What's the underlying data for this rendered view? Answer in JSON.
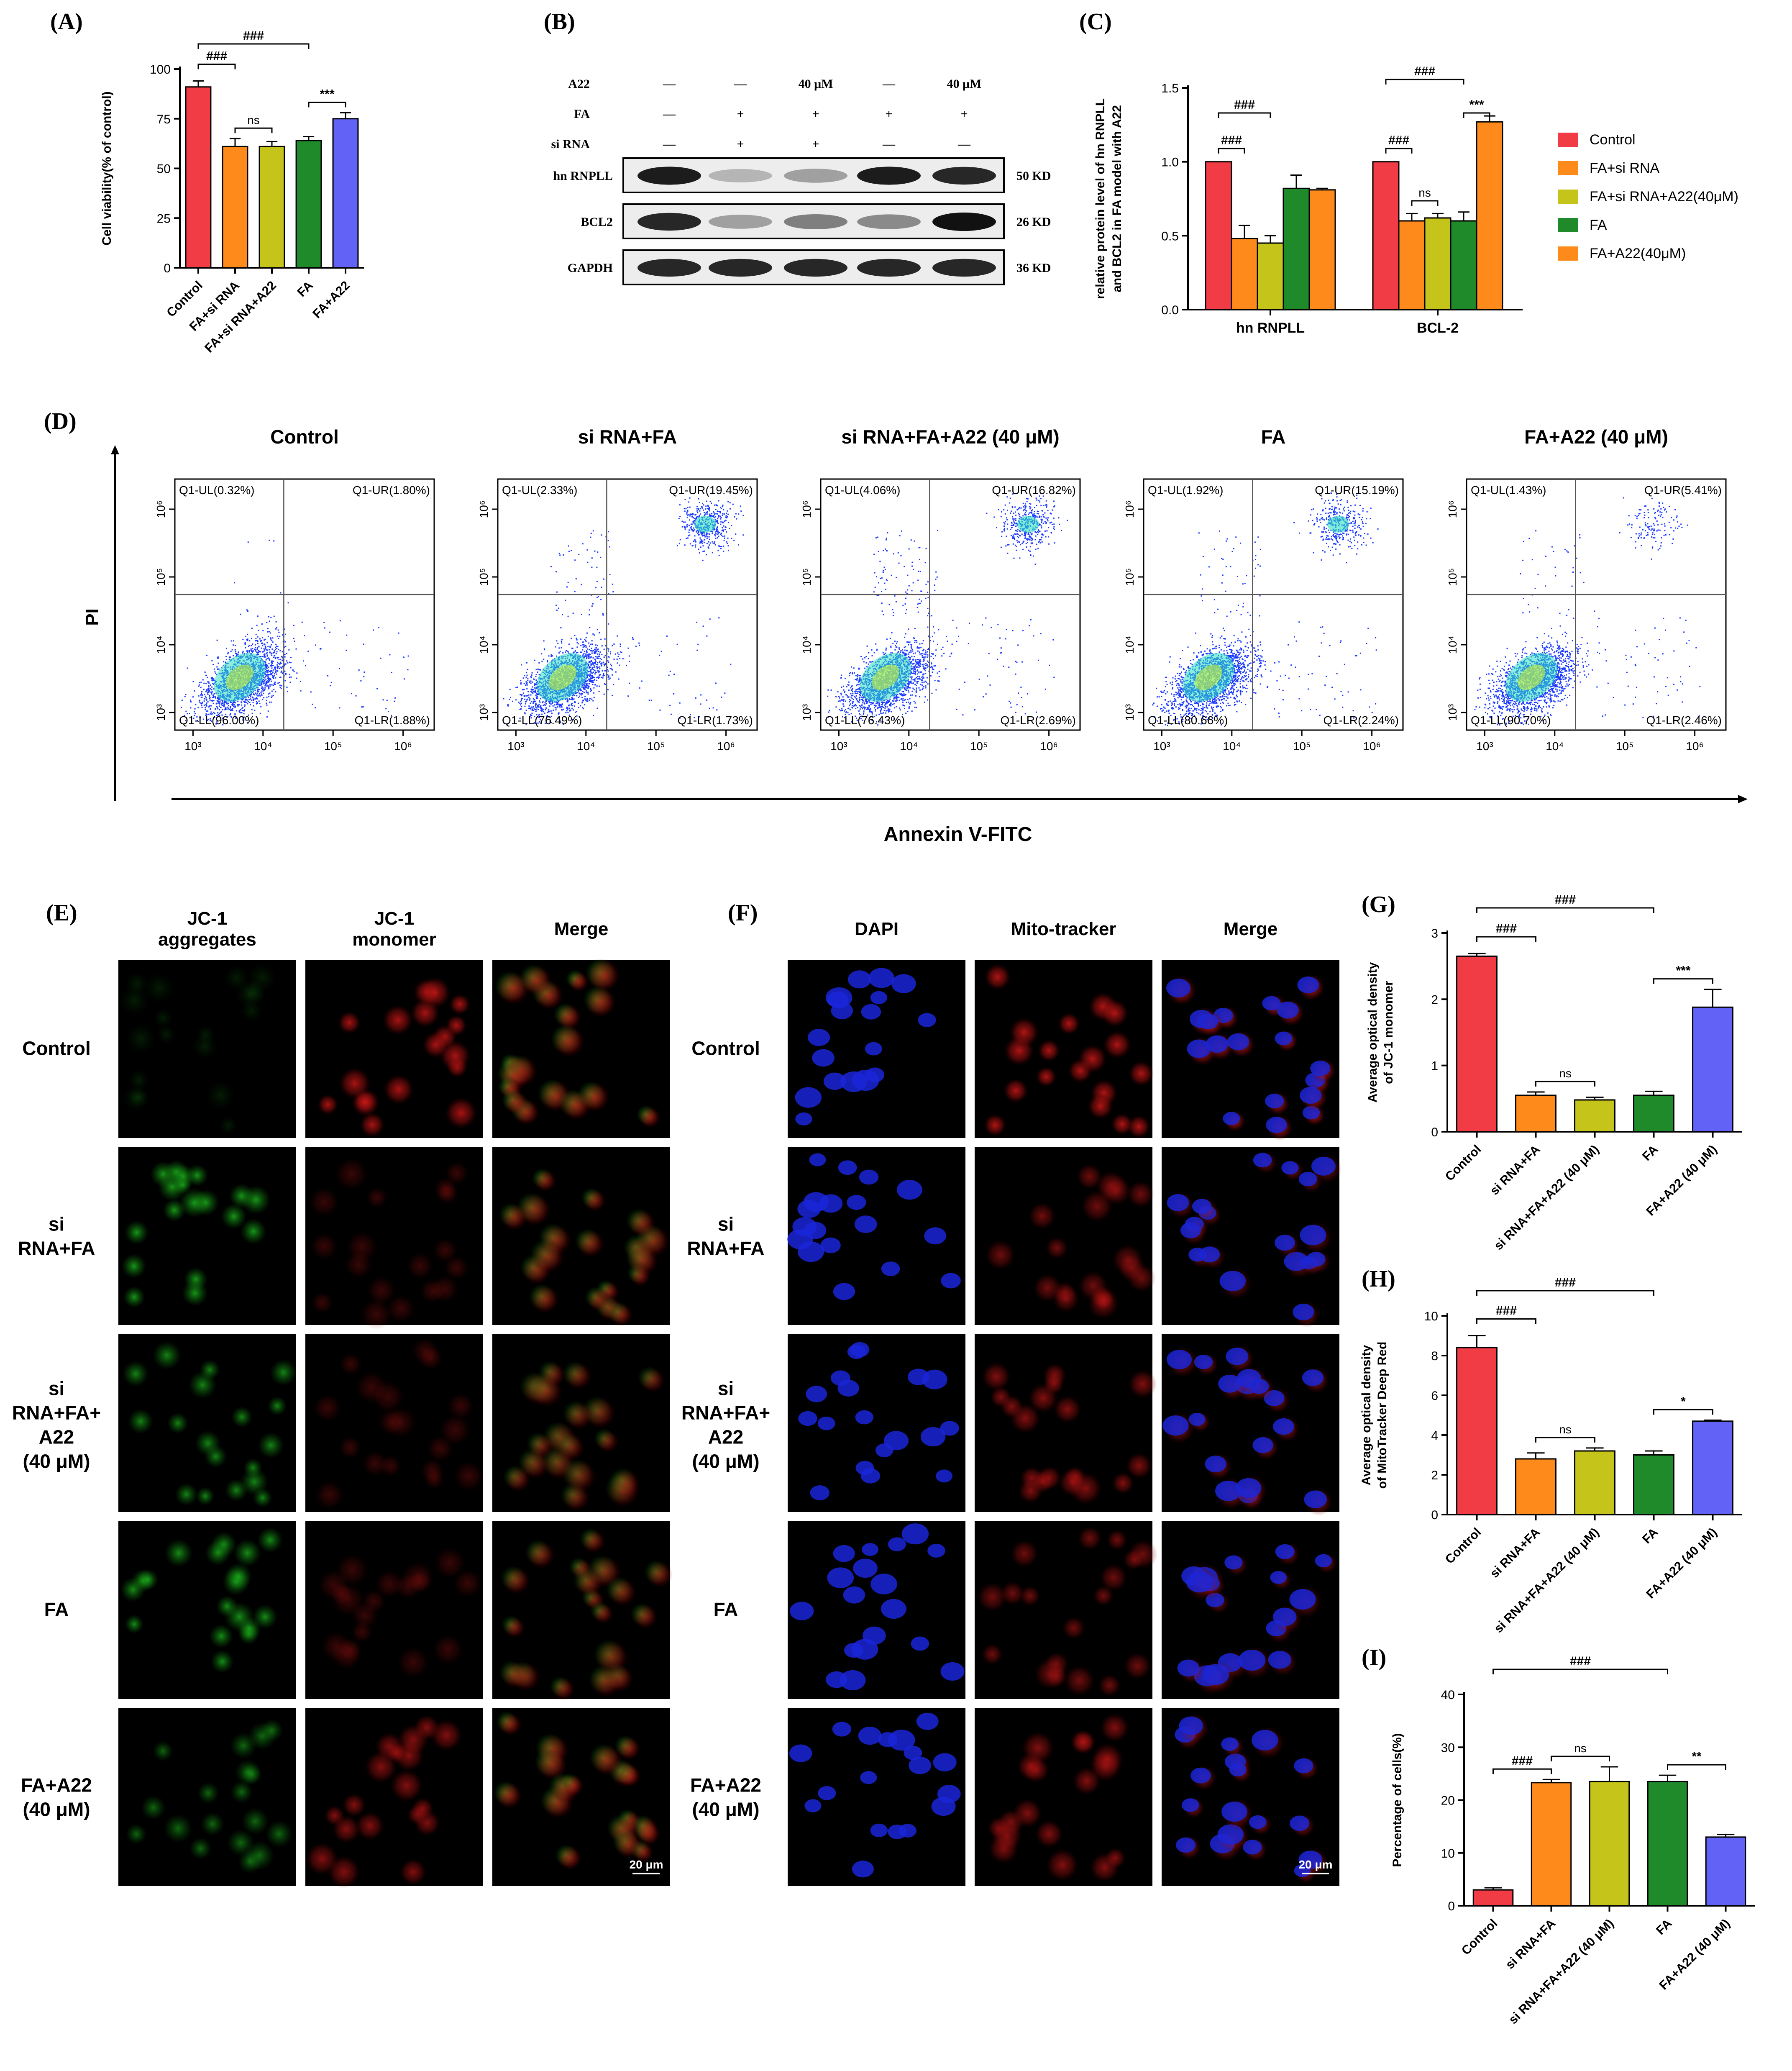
{
  "panels": {
    "A": "(A)",
    "B": "(B)",
    "C": "(C)",
    "D": "(D)",
    "E": "(E)",
    "F": "(F)",
    "G": "(G)",
    "H": "(H)",
    "I": "(I)"
  },
  "chart_data": [
    {
      "id": "A",
      "type": "bar",
      "categories": [
        "Control",
        "FA+si RNA",
        "FA+si RNA+A22",
        "FA",
        "FA+A22"
      ],
      "values": [
        91,
        61,
        61,
        64,
        75
      ],
      "errors": [
        3,
        4,
        2.5,
        2,
        3
      ],
      "colors": [
        "#f23c45",
        "#ff8a1c",
        "#c4c41a",
        "#1f8a2a",
        "#6262f7"
      ],
      "ylabel": "Cell viability(% of control)",
      "ylim": [
        0,
        100
      ],
      "yticks": [
        0,
        25,
        50,
        75,
        100
      ],
      "annotations": [
        {
          "from": 0,
          "to": 1,
          "text": "###"
        },
        {
          "from": 0,
          "to": 3,
          "text": "###"
        },
        {
          "from": 1,
          "to": 2,
          "text": "ns"
        },
        {
          "from": 3,
          "to": 4,
          "text": "***"
        }
      ]
    },
    {
      "id": "C",
      "type": "bar",
      "categories": [
        "hn RNPLL",
        "BCL-2"
      ],
      "series": [
        {
          "name": "Control",
          "values": [
            1.0,
            1.0
          ],
          "errors": [
            0,
            0
          ]
        },
        {
          "name": "FA+si RNA",
          "values": [
            0.48,
            0.6
          ],
          "errors": [
            0.09,
            0.05
          ]
        },
        {
          "name": "FA+si RNA+A22(40μM)",
          "values": [
            0.45,
            0.62
          ],
          "errors": [
            0.05,
            0.03
          ]
        },
        {
          "name": "FA",
          "values": [
            0.82,
            0.6
          ],
          "errors": [
            0.09,
            0.06
          ]
        },
        {
          "name": "FA+A22(40μM)",
          "values": [
            0.81,
            1.27
          ],
          "errors": [
            0.01,
            0.04
          ]
        }
      ],
      "colors": [
        "#f23c45",
        "#ff8a1c",
        "#c4c41a",
        "#1f8a2a",
        "#ff8a1c"
      ],
      "ylabel": [
        "relative protein level of hn RNPLL",
        "and BCL2 in FA model with A22"
      ],
      "ylim": [
        0,
        1.5
      ],
      "yticks": [
        "0.0",
        "0.5",
        "1.0",
        "1.5"
      ],
      "legend_position": "right",
      "annotations": [
        {
          "group": 0,
          "from": 0,
          "to": 1,
          "text": "###"
        },
        {
          "group": 0,
          "from": 0,
          "to": 2,
          "text": "###"
        },
        {
          "group": 1,
          "from": 0,
          "to": 1,
          "text": "###"
        },
        {
          "group": 1,
          "from": 1,
          "to": 2,
          "text": "ns"
        },
        {
          "group": 1,
          "from": 0,
          "to": 3,
          "text": "###"
        },
        {
          "group": 1,
          "from": 3,
          "to": 4,
          "text": "***"
        }
      ]
    },
    {
      "id": "G",
      "type": "bar",
      "categories": [
        "Control",
        "si RNA+FA",
        "si RNA+FA+A22 (40 μM)",
        "FA",
        "FA+A22 (40 μM)"
      ],
      "values": [
        2.65,
        0.55,
        0.48,
        0.55,
        1.88
      ],
      "errors": [
        0.04,
        0.05,
        0.04,
        0.06,
        0.27
      ],
      "colors": [
        "#f23c45",
        "#ff8a1c",
        "#c4c41a",
        "#1f8a2a",
        "#6262f7"
      ],
      "ylabel": [
        "Average optical density",
        "of JC-1 monomer"
      ],
      "ylim": [
        0,
        3
      ],
      "yticks": [
        0,
        1,
        2,
        3
      ],
      "annotations": [
        {
          "from": 0,
          "to": 1,
          "text": "###"
        },
        {
          "from": 0,
          "to": 3,
          "text": "###"
        },
        {
          "from": 1,
          "to": 2,
          "text": "ns"
        },
        {
          "from": 3,
          "to": 4,
          "text": "***"
        }
      ]
    },
    {
      "id": "H",
      "type": "bar",
      "categories": [
        "Control",
        "si RNA+FA",
        "si RNA+FA+A22 (40 μM)",
        "FA",
        "FA+A22 (40 μM)"
      ],
      "values": [
        8.4,
        2.8,
        3.2,
        3.0,
        4.7
      ],
      "errors": [
        0.6,
        0.3,
        0.15,
        0.2,
        0.05
      ],
      "colors": [
        "#f23c45",
        "#ff8a1c",
        "#c4c41a",
        "#1f8a2a",
        "#6262f7"
      ],
      "ylabel": [
        "Average optical density",
        "of MitoTracker Deep Red"
      ],
      "ylim": [
        0,
        10
      ],
      "yticks": [
        0,
        2,
        4,
        6,
        8,
        10
      ],
      "annotations": [
        {
          "from": 0,
          "to": 1,
          "text": "###"
        },
        {
          "from": 0,
          "to": 3,
          "text": "###"
        },
        {
          "from": 1,
          "to": 2,
          "text": "ns"
        },
        {
          "from": 3,
          "to": 4,
          "text": "*"
        }
      ]
    },
    {
      "id": "I",
      "type": "bar",
      "categories": [
        "Control",
        "si RNA+FA",
        "si RNA+FA+A22 (40 μM)",
        "FA",
        "FA+A22 (40 μM)"
      ],
      "values": [
        3.0,
        23.3,
        23.5,
        23.5,
        13.0
      ],
      "errors": [
        0.4,
        0.6,
        2.8,
        1.2,
        0.5
      ],
      "colors": [
        "#f23c45",
        "#ff8a1c",
        "#c4c41a",
        "#1f8a2a",
        "#6262f7"
      ],
      "ylabel": "Percentage of cells(%)",
      "ylim": [
        0,
        40
      ],
      "yticks": [
        0,
        10,
        20,
        30,
        40
      ],
      "annotations": [
        {
          "from": 0,
          "to": 1,
          "text": "###"
        },
        {
          "from": 0,
          "to": 3,
          "text": "###"
        },
        {
          "from": 1,
          "to": 2,
          "text": "ns"
        },
        {
          "from": 3,
          "to": 4,
          "text": "**"
        }
      ]
    },
    {
      "id": "D",
      "type": "scatter",
      "xlabel": "Annexin V-FITC",
      "ylabel": "PI",
      "xticks": [
        "10³",
        "10⁴",
        "10⁵",
        "10⁶"
      ],
      "yticks": [
        "10³",
        "10⁴",
        "10⁵",
        "10⁶"
      ],
      "plots": [
        {
          "title": "Control",
          "UL": "Q1-UL(0.32%)",
          "UR": "Q1-UR(1.80%)",
          "LL": "Q1-LL(96.00%)",
          "LR": "Q1-LR(1.88%)"
        },
        {
          "title": "si RNA+FA",
          "UL": "Q1-UL(2.33%)",
          "UR": "Q1-UR(19.45%)",
          "LL": "Q1-LL(76.49%)",
          "LR": "Q1-LR(1.73%)"
        },
        {
          "title": "si RNA+FA+A22 (40 μM)",
          "UL": "Q1-UL(4.06%)",
          "UR": "Q1-UR(16.82%)",
          "LL": "Q1-LL(76.43%)",
          "LR": "Q1-LR(2.69%)"
        },
        {
          "title": "FA",
          "UL": "Q1-UL(1.92%)",
          "UR": "Q1-UR(15.19%)",
          "LL": "Q1-LL(80.66%)",
          "LR": "Q1-LR(2.24%)"
        },
        {
          "title": "FA+A22 (40 μM)",
          "UL": "Q1-UL(1.43%)",
          "UR": "Q1-UR(5.41%)",
          "LL": "Q1-LL(90.70%)",
          "LR": "Q1-LR(2.46%)"
        }
      ]
    }
  ],
  "western_blot": {
    "row_labels": [
      "A22",
      "FA",
      "si RNA"
    ],
    "rows": [
      [
        "—",
        "—",
        "40 μM",
        "—",
        "40 μM"
      ],
      [
        "—",
        "+",
        "+",
        "+",
        "+"
      ],
      [
        "—",
        "+",
        "+",
        "—",
        "—"
      ]
    ],
    "bands": [
      {
        "name": "hn RNPLL",
        "size": "50 KD",
        "intensity": [
          0.95,
          0.25,
          0.35,
          0.95,
          0.9
        ]
      },
      {
        "name": "BCL2",
        "size": "26 KD",
        "intensity": [
          0.9,
          0.35,
          0.5,
          0.45,
          1.0
        ]
      },
      {
        "name": "GAPDH",
        "size": "36 KD",
        "intensity": [
          0.9,
          0.9,
          0.9,
          0.9,
          0.9
        ]
      }
    ]
  },
  "jc1_panel": {
    "column_headers": [
      [
        "JC-1",
        "aggregates"
      ],
      [
        "JC-1",
        "monomer"
      ],
      [
        "Merge"
      ]
    ],
    "row_labels": [
      [
        "Control"
      ],
      [
        "si",
        "RNA+FA"
      ],
      [
        "si",
        "RNA+FA+",
        "A22",
        "(40 μM)"
      ],
      [
        "FA"
      ],
      [
        "FA+A22",
        "(40 μM)"
      ]
    ],
    "scale_bar": "20 μm"
  },
  "mito_panel": {
    "column_headers": [
      [
        "DAPI"
      ],
      [
        "Mito-tracker"
      ],
      [
        "Merge"
      ]
    ],
    "row_labels": [
      [
        "Control"
      ],
      [
        "si",
        "RNA+FA"
      ],
      [
        "si",
        "RNA+FA+",
        "A22",
        "(40 μM)"
      ],
      [
        "FA"
      ],
      [
        "FA+A22",
        "(40 μM)"
      ]
    ],
    "scale_bar": "20 μm"
  }
}
